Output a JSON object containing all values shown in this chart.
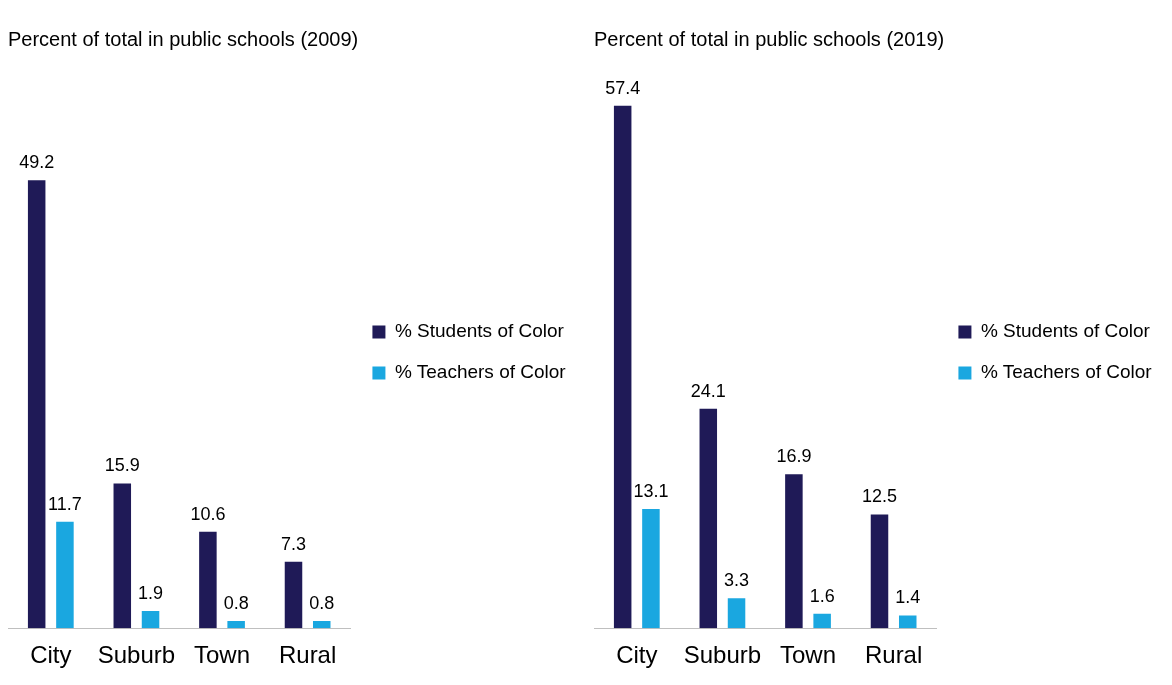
{
  "chart_data": [
    {
      "type": "bar",
      "title": "Percent of total in public schools (2009)",
      "categories": [
        "City",
        "Suburb",
        "Town",
        "Rural"
      ],
      "series": [
        {
          "name": "% Students of Color",
          "color": "#1f1a57",
          "values": [
            49.2,
            15.9,
            10.6,
            7.3
          ]
        },
        {
          "name": "% Teachers of Color",
          "color": "#1aa7e0",
          "values": [
            11.7,
            1.9,
            0.8,
            0.8
          ]
        }
      ],
      "data_labels": true,
      "legend": "right",
      "grid": false
    },
    {
      "type": "bar",
      "title": "Percent of total in public schools (2019)",
      "categories": [
        "City",
        "Suburb",
        "Town",
        "Rural"
      ],
      "series": [
        {
          "name": "% Students of Color",
          "color": "#1f1a57",
          "values": [
            57.4,
            24.1,
            16.9,
            12.5
          ]
        },
        {
          "name": "% Teachers of Color",
          "color": "#1aa7e0",
          "values": [
            13.1,
            3.3,
            1.6,
            1.4
          ]
        }
      ],
      "data_labels": true,
      "legend": "right",
      "grid": false
    }
  ]
}
